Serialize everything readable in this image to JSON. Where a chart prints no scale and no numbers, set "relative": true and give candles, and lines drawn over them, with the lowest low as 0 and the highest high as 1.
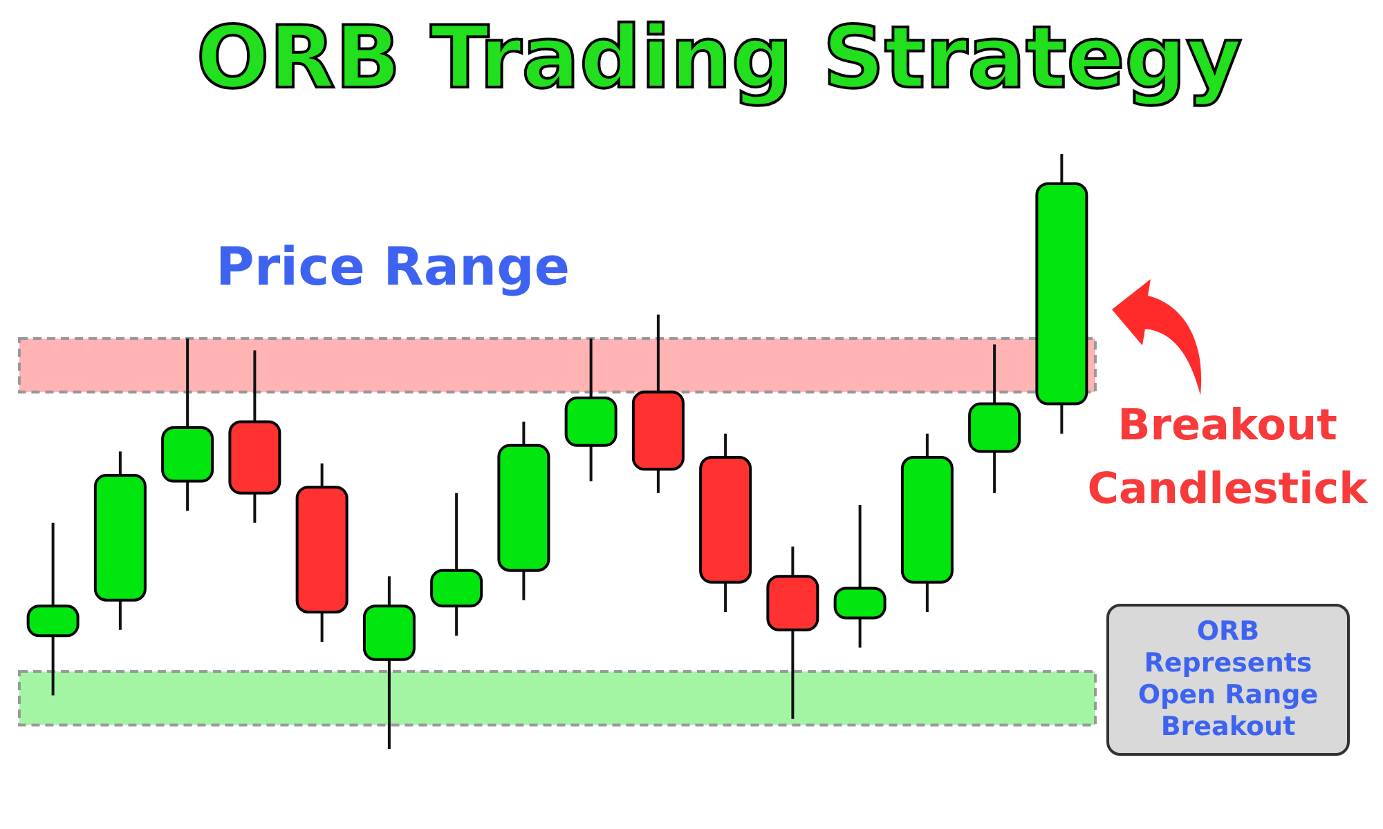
{
  "chart_data": {
    "type": "candlestick",
    "title": "ORB Trading Strategy",
    "relative": true,
    "categories": [
      null,
      null,
      null,
      null,
      null,
      null,
      null,
      null,
      null,
      null,
      null,
      null,
      null,
      null,
      null,
      null
    ],
    "ohlc": [
      [
        0.19,
        0.38,
        0.09,
        0.24
      ],
      [
        0.25,
        0.5,
        0.2,
        0.46
      ],
      [
        0.45,
        0.69,
        0.4,
        0.54
      ],
      [
        0.55,
        0.67,
        0.38,
        0.43
      ],
      [
        0.44,
        0.48,
        0.18,
        0.23
      ],
      [
        0.15,
        0.29,
        0,
        0.24
      ],
      [
        0.24,
        0.43,
        0.19,
        0.3
      ],
      [
        0.3,
        0.55,
        0.25,
        0.51
      ],
      [
        0.51,
        0.69,
        0.45,
        0.59
      ],
      [
        0.6,
        0.73,
        0.43,
        0.47
      ],
      [
        0.49,
        0.53,
        0.23,
        0.28
      ],
      [
        0.29,
        0.34,
        0.05,
        0.2
      ],
      [
        0.22,
        0.41,
        0.17,
        0.27
      ],
      [
        0.28,
        0.53,
        0.23,
        0.49
      ],
      [
        0.5,
        0.68,
        0.43,
        0.58
      ],
      [
        0.58,
        1,
        0.53,
        0.95
      ]
    ],
    "colors": [
      "#00e60e",
      "#00e60e",
      "#00e60e",
      "#ff3131",
      "#ff3131",
      "#00e60e",
      "#00e60e",
      "#00e60e",
      "#00e60e",
      "#ff3131",
      "#ff3131",
      "#ff3131",
      "#00e60e",
      "#00e60e",
      "#00e60e",
      "#00e60e"
    ],
    "bands": [
      {
        "axis": "y",
        "from": 0.6,
        "to": 0.69,
        "label": "Price Range",
        "color": "#ffb3b3"
      },
      {
        "axis": "y",
        "from": 0.04,
        "to": 0.13,
        "color": "#a3f5a3"
      }
    ],
    "annotations": [
      "Breakout Candlestick",
      "ORB Represents Open Range Breakout"
    ]
  }
}
